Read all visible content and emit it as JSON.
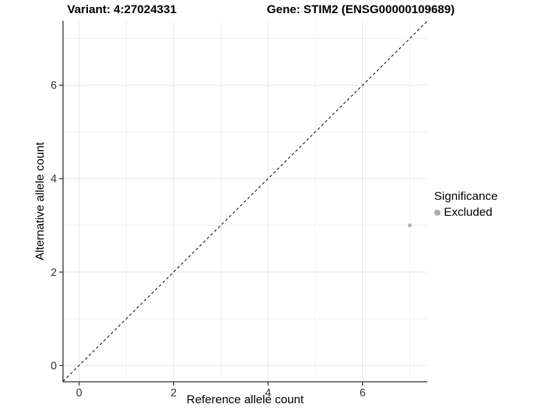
{
  "titles": {
    "variant": "Variant: 4:27024331",
    "gene": "Gene: STIM2 (ENSG00000109689)"
  },
  "chart_data": {
    "type": "scatter",
    "title_left": "Variant: 4:27024331",
    "title_right": "Gene: STIM2 (ENSG00000109689)",
    "xlabel": "Reference allele count",
    "ylabel": "Alternative allele count",
    "xlim": [
      -0.34,
      7.37
    ],
    "ylim": [
      -0.35,
      7.38
    ],
    "x_ticks": [
      0,
      2,
      4,
      6
    ],
    "y_ticks": [
      0,
      2,
      4,
      6
    ],
    "x_minor": [
      1,
      3,
      5,
      7
    ],
    "y_minor": [
      1,
      3,
      5,
      7
    ],
    "grid": true,
    "reference_line": {
      "type": "abline",
      "slope": 1,
      "intercept": 0,
      "style": "dashed",
      "color": "#000000"
    },
    "series": [
      {
        "name": "Excluded",
        "color": "#adadad",
        "points": [
          {
            "x": 7,
            "y": 3
          }
        ]
      }
    ],
    "legend": {
      "title": "Significance",
      "position": "right",
      "entries": [
        {
          "label": "Excluded",
          "color": "#adadad"
        }
      ]
    }
  },
  "colors": {
    "background": "#ffffff",
    "grid_major": "#e4e4e4",
    "grid_minor": "#efefef",
    "axis_line": "#1a1a1a",
    "tick_label": "#333333",
    "point": "#adadad"
  }
}
